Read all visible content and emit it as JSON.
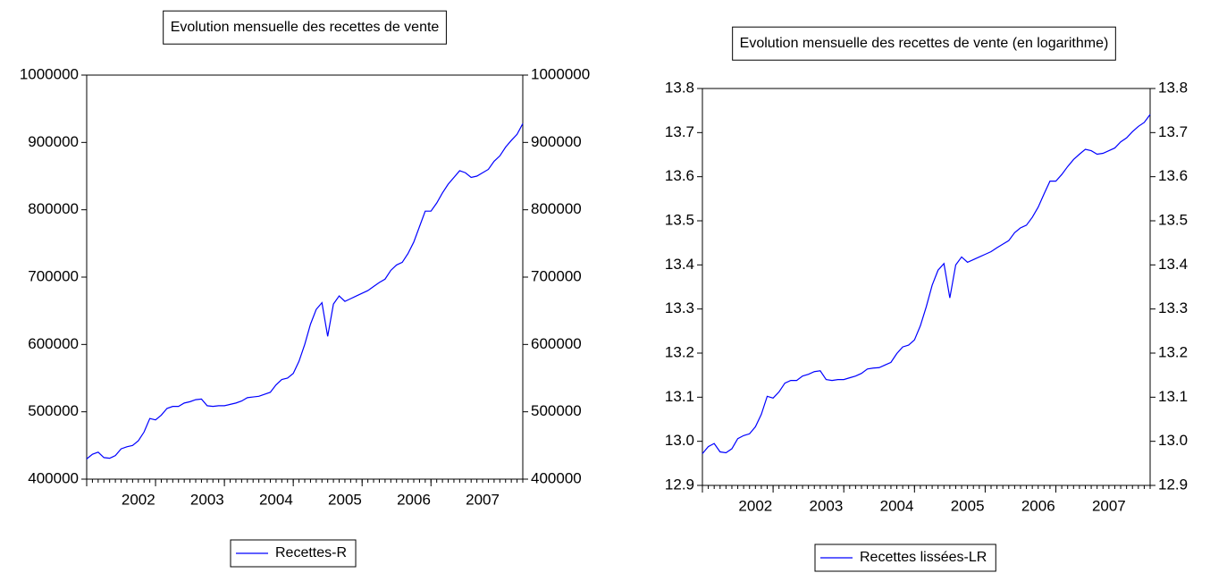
{
  "chart_data": [
    {
      "type": "line",
      "title": "Evolution mensuelle des recettes de vente",
      "categories": [
        null,
        null,
        null,
        null,
        null,
        null,
        null,
        null,
        null,
        "2002",
        null,
        null,
        null,
        null,
        null,
        null,
        null,
        null,
        null,
        null,
        null,
        "2003",
        null,
        null,
        null,
        null,
        null,
        null,
        null,
        null,
        null,
        null,
        null,
        "2004",
        null,
        null,
        null,
        null,
        null,
        null,
        null,
        null,
        null,
        null,
        null,
        "2005",
        null,
        null,
        null,
        null,
        null,
        null,
        null,
        null,
        null,
        null,
        null,
        "2006",
        null,
        null,
        null,
        null,
        null,
        null,
        null,
        null,
        null,
        null,
        null,
        "2007",
        null,
        null,
        null,
        null,
        null,
        null,
        null
      ],
      "series": [
        {
          "name": "Recettes-R",
          "color": "#0000ff",
          "values": [
            430000,
            437000,
            440000,
            432000,
            431000,
            435000,
            445000,
            448000,
            450000,
            457000,
            470000,
            490000,
            488000,
            495000,
            505000,
            508000,
            508000,
            513000,
            515000,
            518000,
            519000,
            509000,
            508000,
            509000,
            509000,
            511000,
            513000,
            516000,
            521000,
            522000,
            523000,
            526000,
            529000,
            540000,
            548000,
            550000,
            557000,
            575000,
            600000,
            630000,
            652000,
            662000,
            612000,
            660000,
            672000,
            664000,
            668000,
            672000,
            676000,
            680000,
            686000,
            692000,
            697000,
            710000,
            718000,
            722000,
            735000,
            752000,
            775000,
            798000,
            798000,
            810000,
            825000,
            838000,
            848000,
            858000,
            855000,
            848000,
            850000,
            855000,
            860000,
            872000,
            880000,
            893000,
            903000,
            912000,
            928000
          ]
        }
      ],
      "ylim": [
        400000,
        1000000
      ],
      "yticks": [
        400000,
        500000,
        600000,
        700000,
        800000,
        900000,
        1000000
      ]
    },
    {
      "type": "line",
      "title": "Evolution mensuelle des recettes de vente (en logarithme)",
      "categories": [
        null,
        null,
        null,
        null,
        null,
        null,
        null,
        null,
        null,
        "2002",
        null,
        null,
        null,
        null,
        null,
        null,
        null,
        null,
        null,
        null,
        null,
        "2003",
        null,
        null,
        null,
        null,
        null,
        null,
        null,
        null,
        null,
        null,
        null,
        "2004",
        null,
        null,
        null,
        null,
        null,
        null,
        null,
        null,
        null,
        null,
        null,
        "2005",
        null,
        null,
        null,
        null,
        null,
        null,
        null,
        null,
        null,
        null,
        null,
        "2006",
        null,
        null,
        null,
        null,
        null,
        null,
        null,
        null,
        null,
        null,
        null,
        "2007",
        null,
        null,
        null,
        null,
        null,
        null,
        null
      ],
      "series": [
        {
          "name": "Recettes lissées-LR",
          "color": "#0000ff",
          "values": [
            12.972,
            12.988,
            12.995,
            12.976,
            12.974,
            12.983,
            13.006,
            13.013,
            13.017,
            13.033,
            13.061,
            13.102,
            13.098,
            13.112,
            13.132,
            13.138,
            13.138,
            13.148,
            13.152,
            13.158,
            13.16,
            13.14,
            13.138,
            13.14,
            13.14,
            13.144,
            13.148,
            13.154,
            13.164,
            13.166,
            13.167,
            13.173,
            13.179,
            13.199,
            13.214,
            13.218,
            13.23,
            13.262,
            13.305,
            13.354,
            13.388,
            13.403,
            13.325,
            13.4,
            13.418,
            13.406,
            13.412,
            13.418,
            13.424,
            13.43,
            13.439,
            13.447,
            13.455,
            13.473,
            13.484,
            13.49,
            13.508,
            13.531,
            13.561,
            13.59,
            13.59,
            13.605,
            13.623,
            13.639,
            13.651,
            13.662,
            13.659,
            13.651,
            13.653,
            13.659,
            13.665,
            13.679,
            13.688,
            13.702,
            13.714,
            13.723,
            13.741
          ]
        }
      ],
      "ylim": [
        12.9,
        13.8
      ],
      "yticks": [
        12.9,
        {
          "value": 13,
          "label": "13.0"
        },
        13.1,
        13.2,
        13.3,
        13.4,
        13.5,
        13.6,
        13.7,
        13.8
      ]
    }
  ]
}
